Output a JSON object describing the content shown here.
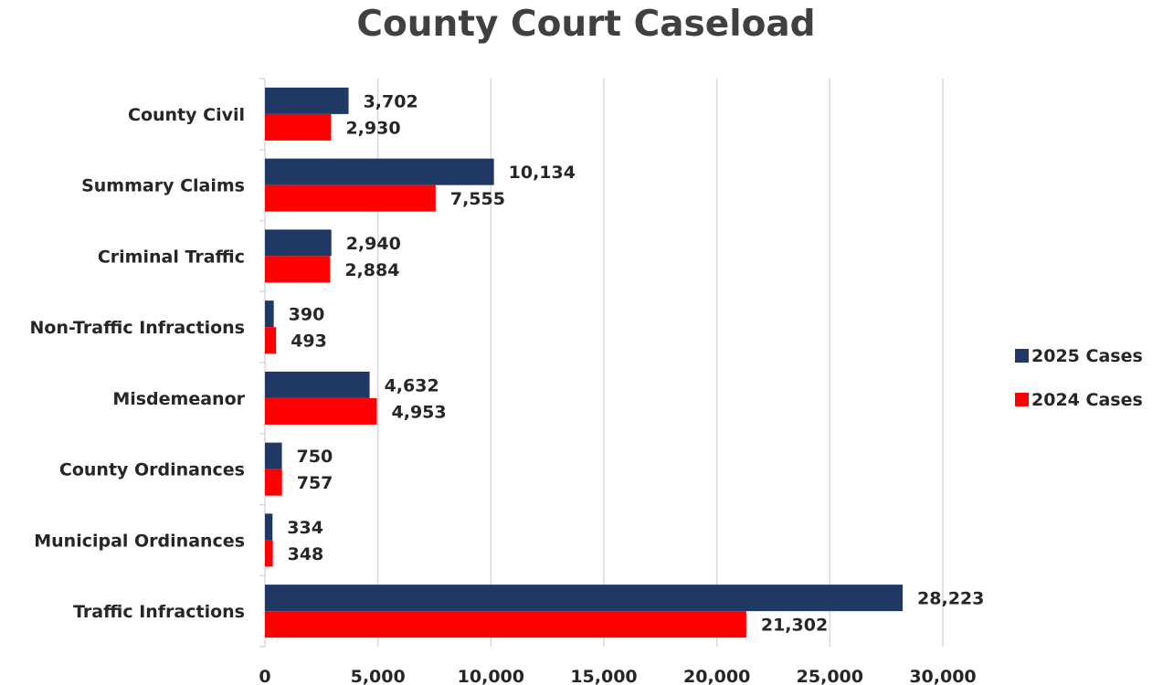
{
  "chart_data": {
    "type": "bar",
    "orientation": "horizontal",
    "title": "County Court Caseload",
    "categories": [
      "County Civil",
      "Summary Claims",
      "Criminal Traffic",
      "Non-Traffic Infractions",
      "Misdemeanor",
      "County Ordinances",
      "Municipal Ordinances",
      "Traffic Infractions"
    ],
    "series": [
      {
        "name": "2025 Cases",
        "color": "#1F3864",
        "values": [
          3702,
          10134,
          2940,
          390,
          4632,
          750,
          334,
          28223
        ],
        "labels": [
          "3,702",
          "10,134",
          "2,940",
          "390",
          "4,632",
          "750",
          "334",
          "28,223"
        ]
      },
      {
        "name": "2024 Cases",
        "color": "#FF0000",
        "values": [
          2930,
          7555,
          2884,
          493,
          4953,
          757,
          348,
          21302
        ],
        "labels": [
          "2,930",
          "7,555",
          "2,884",
          "493",
          "4,953",
          "757",
          "348",
          "21,302"
        ]
      }
    ],
    "xlim": [
      0,
      30000
    ],
    "ticks": [
      0,
      5000,
      10000,
      15000,
      20000,
      25000,
      30000
    ],
    "tick_labels": [
      "0",
      "5,000",
      "10,000",
      "15,000",
      "20,000",
      "25,000",
      "30,000"
    ],
    "grid": true,
    "legend_position": "right"
  }
}
